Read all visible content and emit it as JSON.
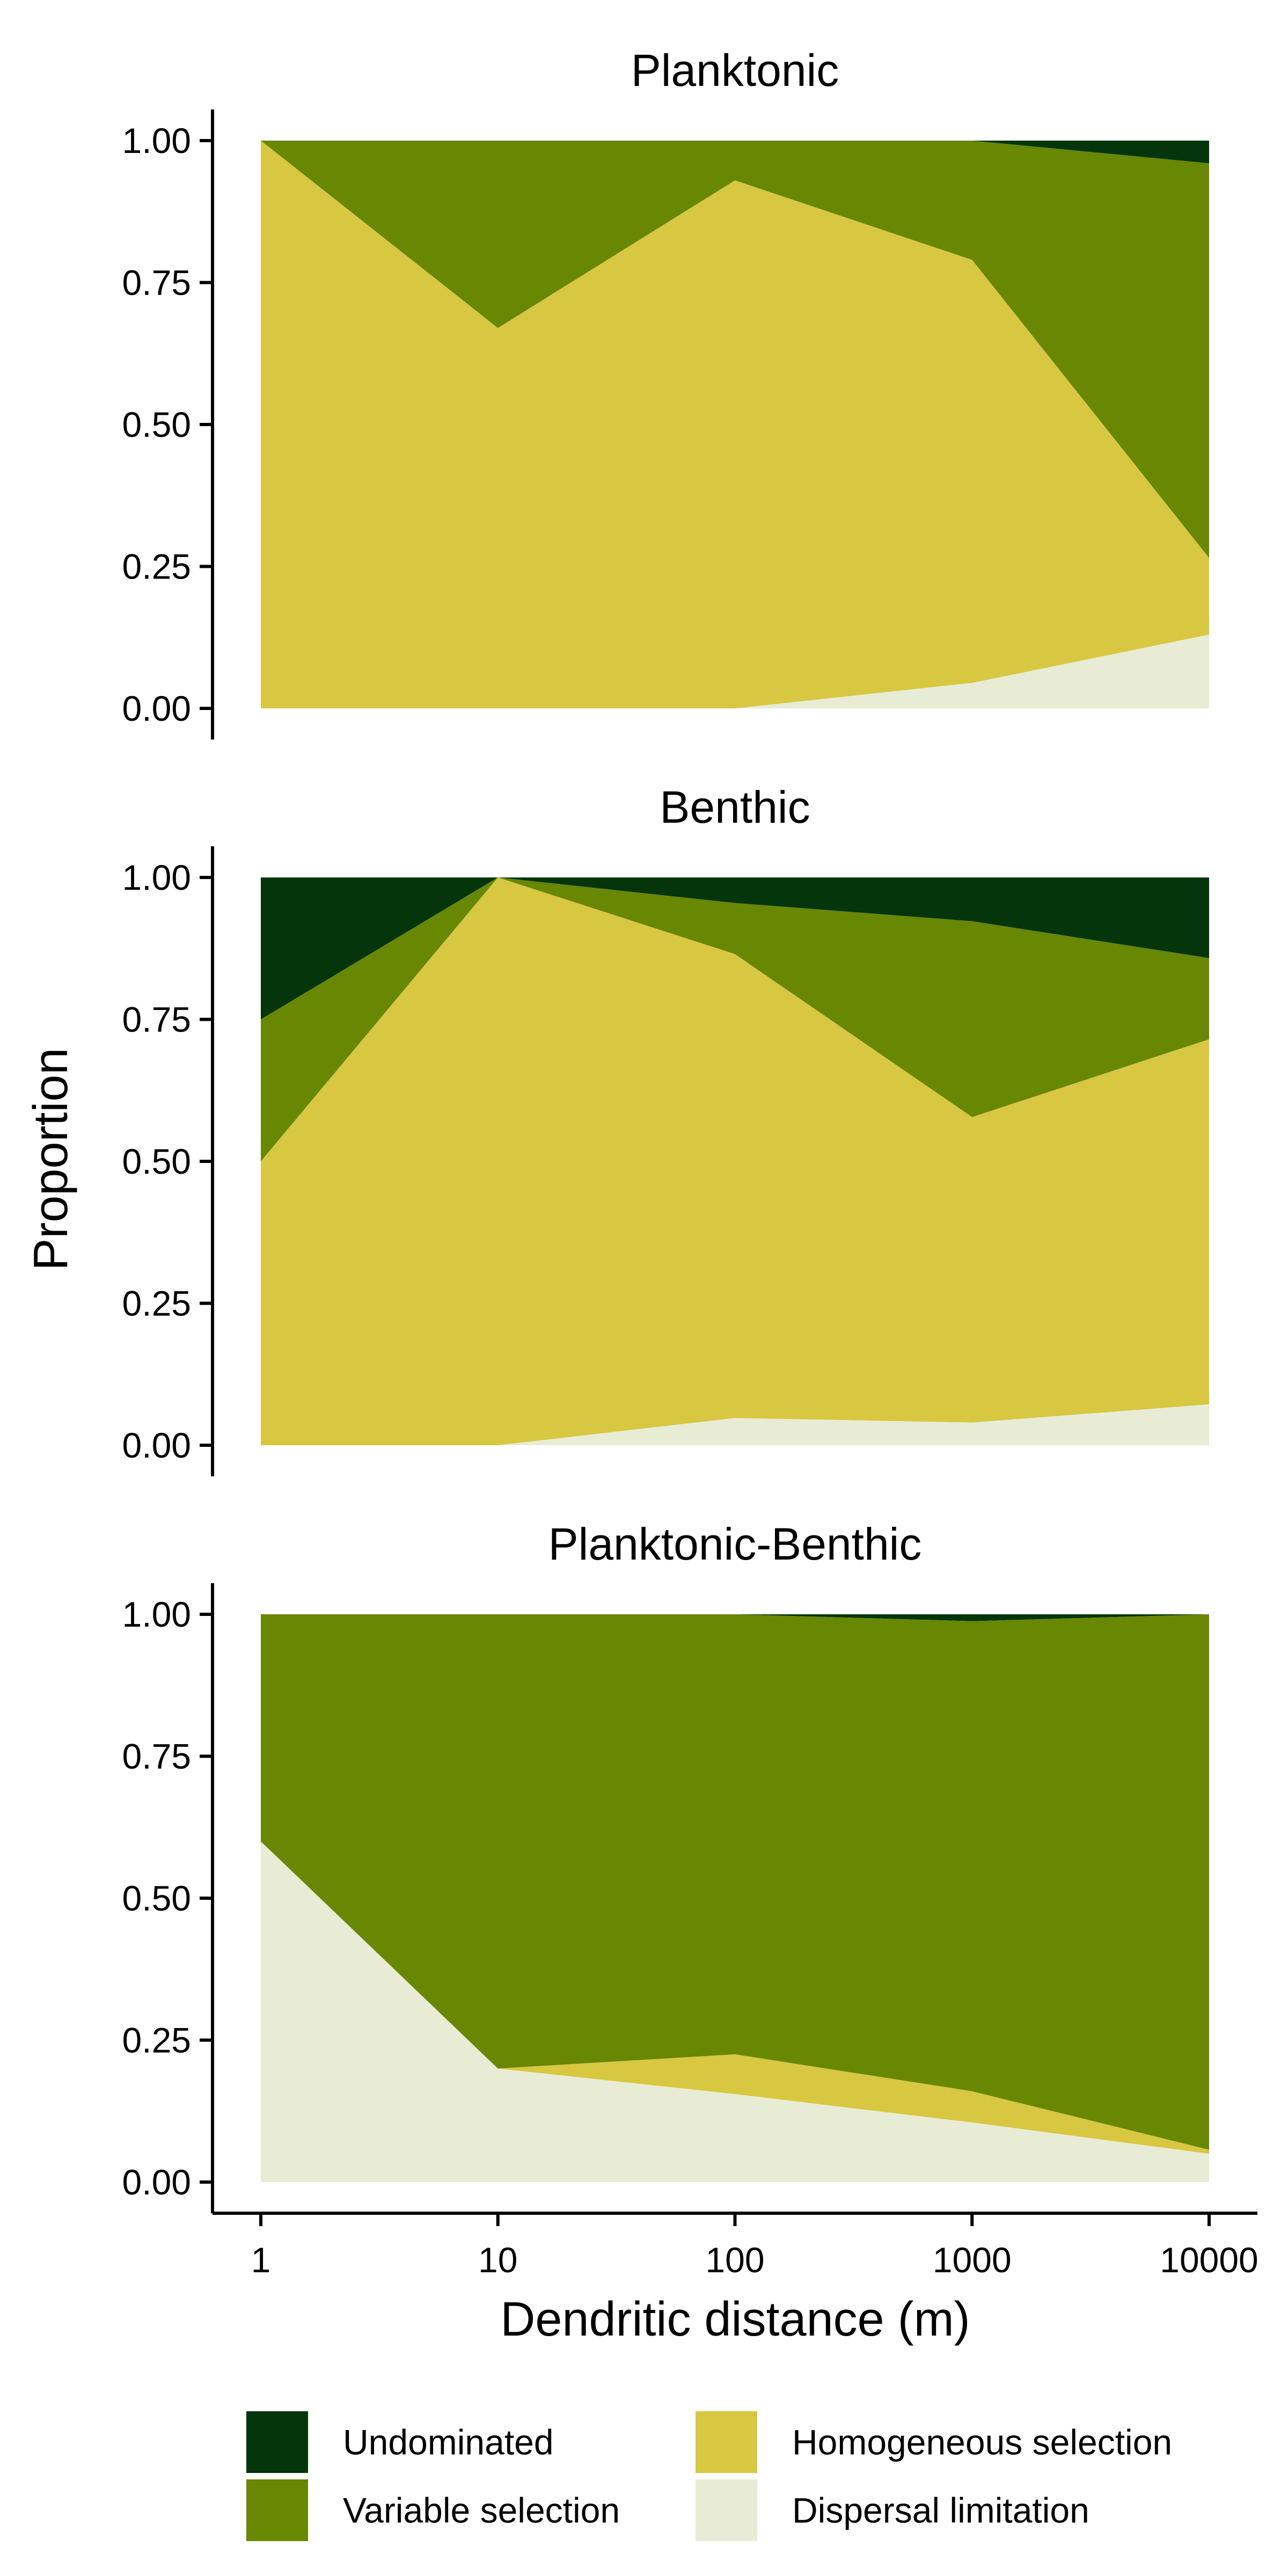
{
  "chart_data": {
    "type": "area",
    "stacked": true,
    "x_scale": "log10",
    "xlabel": "Dendritic distance (m)",
    "ylabel": "Proportion",
    "x_ticks": [
      1,
      10,
      100,
      1000,
      10000
    ],
    "x_tick_labels": [
      "1",
      "10",
      "100",
      "1000",
      "10000"
    ],
    "y_ticks": [
      0,
      0.25,
      0.5,
      0.75,
      1
    ],
    "y_tick_labels": [
      "0.00",
      "0.25",
      "0.50",
      "0.75",
      "1.00"
    ],
    "ylim": [
      0,
      1
    ],
    "grid": false,
    "legend_position": "bottom",
    "legend": [
      {
        "label": "Undominated",
        "color": "#05350b"
      },
      {
        "label": "Variable selection",
        "color": "#688703"
      },
      {
        "label": "Homogeneous selection",
        "color": "#d8c741"
      },
      {
        "label": "Dispersal limitation",
        "color": "#e8ecd5"
      }
    ],
    "panels": [
      {
        "title": "Planktonic",
        "x": [
          1,
          10,
          100,
          1000,
          10000
        ],
        "series": [
          {
            "name": "Dispersal limitation",
            "values": [
              0.0,
              0.0,
              0.0,
              0.045,
              0.13
            ]
          },
          {
            "name": "Homogeneous selection",
            "values": [
              1.0,
              0.67,
              0.93,
              0.745,
              0.135
            ]
          },
          {
            "name": "Variable selection",
            "values": [
              0.0,
              0.33,
              0.07,
              0.21,
              0.695
            ]
          },
          {
            "name": "Undominated",
            "values": [
              0.0,
              0.0,
              0.0,
              0.0,
              0.04
            ]
          }
        ]
      },
      {
        "title": "Benthic",
        "x": [
          1,
          10,
          100,
          1000,
          10000
        ],
        "series": [
          {
            "name": "Dispersal limitation",
            "values": [
              0.0,
              0.0,
              0.048,
              0.04,
              0.072
            ]
          },
          {
            "name": "Homogeneous selection",
            "values": [
              0.5,
              1.0,
              0.817,
              0.538,
              0.643
            ]
          },
          {
            "name": "Variable selection",
            "values": [
              0.25,
              0.0,
              0.09,
              0.345,
              0.143
            ]
          },
          {
            "name": "Undominated",
            "values": [
              0.25,
              0.0,
              0.045,
              0.077,
              0.142
            ]
          }
        ]
      },
      {
        "title": "Planktonic-Benthic",
        "x": [
          1,
          10,
          100,
          1000,
          10000
        ],
        "series": [
          {
            "name": "Dispersal limitation",
            "values": [
              0.6,
              0.2,
              0.155,
              0.105,
              0.05
            ]
          },
          {
            "name": "Homogeneous selection",
            "values": [
              0.0,
              0.0,
              0.07,
              0.055,
              0.007
            ]
          },
          {
            "name": "Variable selection",
            "values": [
              0.4,
              0.8,
              0.775,
              0.828,
              0.943
            ]
          },
          {
            "name": "Undominated",
            "values": [
              0.0,
              0.0,
              0.0,
              0.012,
              0.0
            ]
          }
        ]
      }
    ]
  }
}
